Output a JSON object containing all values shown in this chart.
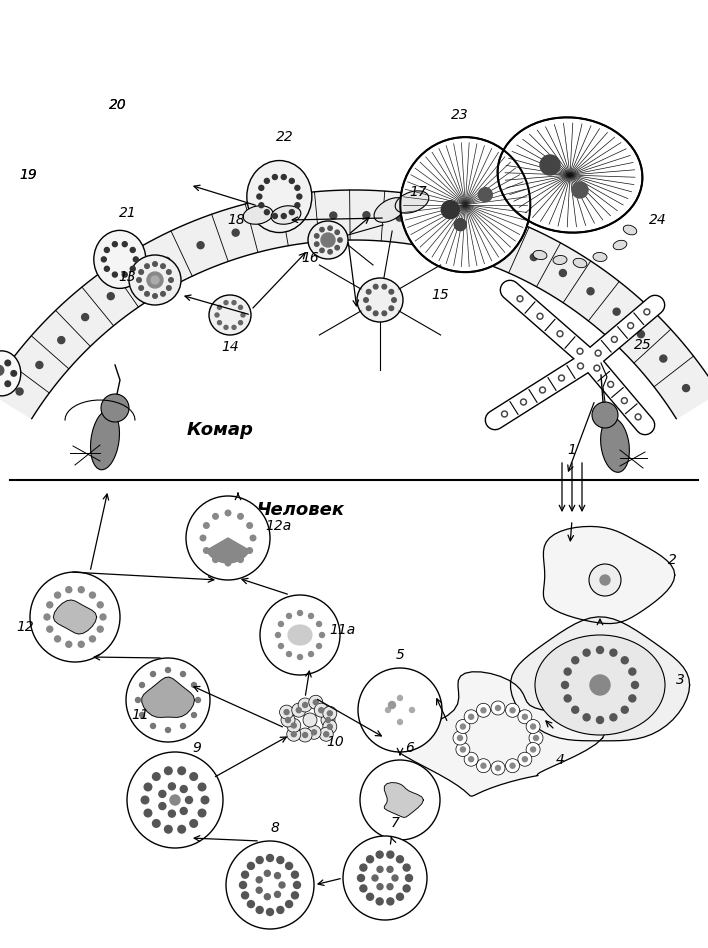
{
  "title_top": "Комар",
  "title_bottom": "Человек",
  "bg_color": "#ffffff",
  "line_color": "#000000",
  "fig_width": 7.08,
  "fig_height": 9.48,
  "dpi": 100
}
